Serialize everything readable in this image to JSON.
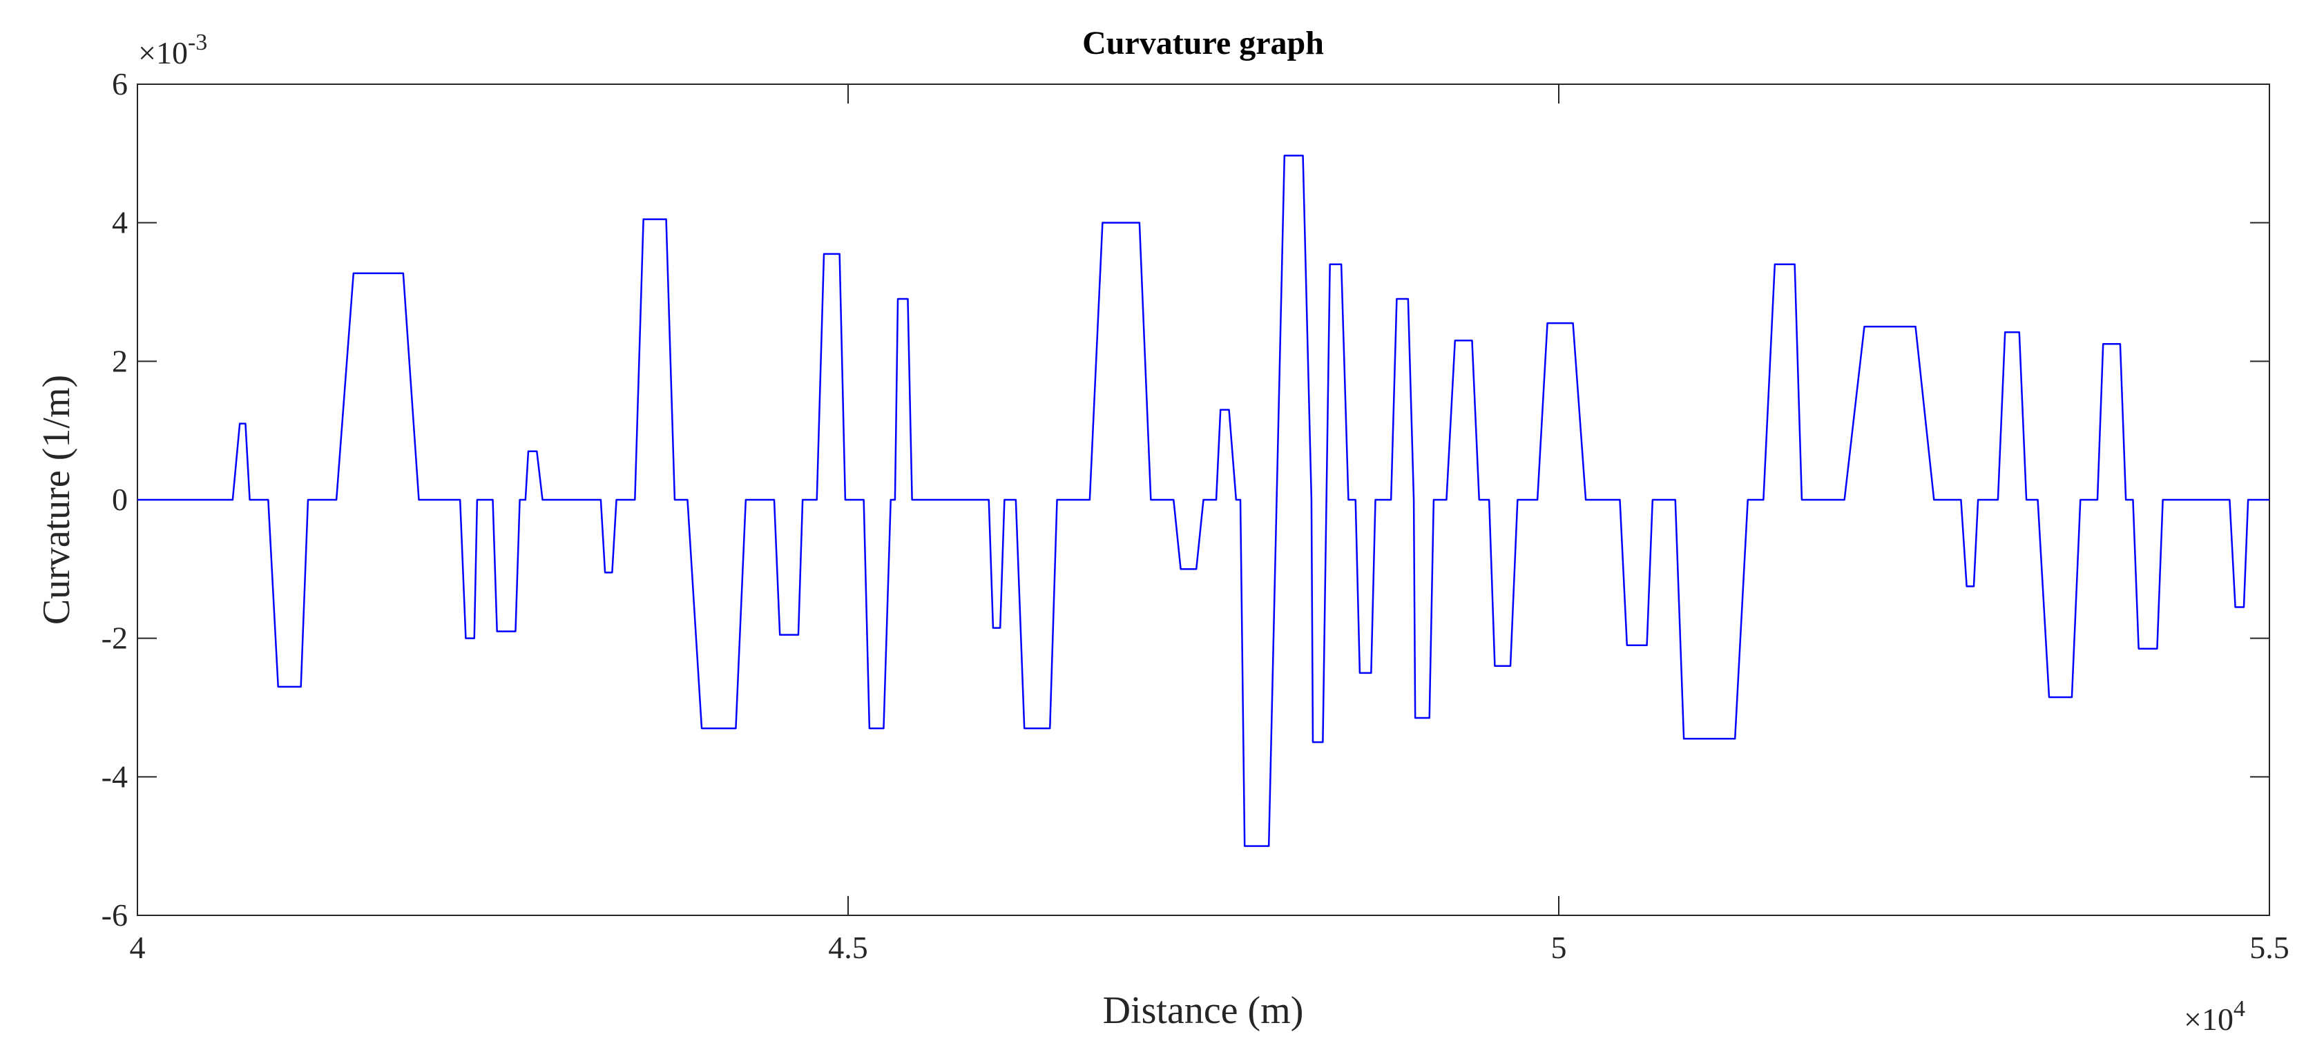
{
  "chart_data": {
    "type": "line",
    "title": "Curvature graph",
    "x_label": "Distance (m)",
    "y_label": "Curvature (1/m)",
    "x_scale_label": "×10",
    "x_scale_exponent": "4",
    "y_scale_label": "×10",
    "y_scale_exponent": "-3",
    "color": "#0000ff",
    "x": [
      4.0,
      4.067,
      4.072,
      4.076,
      4.079,
      4.092,
      4.099,
      4.115,
      4.12,
      4.14,
      4.152,
      4.187,
      4.198,
      4.227,
      4.231,
      4.237,
      4.239,
      4.25,
      4.253,
      4.266,
      4.269,
      4.273,
      4.275,
      4.281,
      4.285,
      4.326,
      4.329,
      4.334,
      4.337,
      4.35,
      4.356,
      4.372,
      4.378,
      4.387,
      4.397,
      4.421,
      4.428,
      4.448,
      4.452,
      4.465,
      4.468,
      4.478,
      4.483,
      4.494,
      4.498,
      4.511,
      4.515,
      4.525,
      4.53,
      4.533,
      4.535,
      4.542,
      4.545,
      4.599,
      4.602,
      4.607,
      4.61,
      4.618,
      4.624,
      4.642,
      4.647,
      4.67,
      4.679,
      4.705,
      4.713,
      4.729,
      4.734,
      4.745,
      4.75,
      4.759,
      4.762,
      4.768,
      4.773,
      4.776,
      4.779,
      4.796,
      4.807,
      4.82,
      4.826,
      4.827,
      4.834,
      4.839,
      4.847,
      4.852,
      4.857,
      4.86,
      4.868,
      4.871,
      4.882,
      4.886,
      4.894,
      4.898,
      4.899,
      4.909,
      4.912,
      4.921,
      4.927,
      4.939,
      4.944,
      4.951,
      4.955,
      4.966,
      4.971,
      4.985,
      4.992,
      5.01,
      5.019,
      5.043,
      5.048,
      5.062,
      5.066,
      5.082,
      5.088,
      5.124,
      5.133,
      5.144,
      5.152,
      5.166,
      5.171,
      5.201,
      5.215,
      5.251,
      5.264,
      5.283,
      5.287,
      5.292,
      5.295,
      5.309,
      5.314,
      5.324,
      5.329,
      5.337,
      5.345,
      5.361,
      5.367,
      5.379,
      5.383,
      5.395,
      5.399,
      5.404,
      5.408,
      5.421,
      5.425,
      5.472,
      5.476,
      5.482,
      5.485,
      5.5
    ],
    "values": [
      0,
      0,
      1.1,
      1.1,
      0,
      0,
      -2.7,
      -2.7,
      0,
      0,
      3.27,
      3.27,
      0,
      0,
      -2.0,
      -2.0,
      0,
      0,
      -1.9,
      -1.9,
      0,
      0,
      0.7,
      0.7,
      0,
      0,
      -1.05,
      -1.05,
      0,
      0,
      4.05,
      4.05,
      0,
      0,
      -3.3,
      -3.3,
      0,
      0,
      -1.95,
      -1.95,
      0,
      0,
      3.55,
      3.55,
      0,
      0,
      -3.3,
      -3.3,
      0,
      0,
      2.9,
      2.9,
      0,
      0,
      -1.85,
      -1.85,
      0,
      0,
      -3.3,
      -3.3,
      0,
      0,
      4.0,
      4.0,
      0,
      0,
      -1.0,
      -1.0,
      0,
      0,
      1.3,
      1.3,
      0,
      0,
      -5.0,
      -5.0,
      4.97,
      4.97,
      0,
      -3.5,
      -3.5,
      3.4,
      3.4,
      0,
      0,
      -2.5,
      -2.5,
      0,
      0,
      2.9,
      2.9,
      0,
      -3.15,
      -3.15,
      0,
      0,
      2.3,
      2.3,
      0,
      0,
      -2.4,
      -2.4,
      0,
      0,
      2.55,
      2.55,
      0,
      0,
      -2.1,
      -2.1,
      0,
      0,
      -3.45,
      -3.45,
      0,
      0,
      3.4,
      3.4,
      0,
      0,
      2.5,
      2.5,
      0,
      0,
      -1.25,
      -1.25,
      0,
      0,
      2.42,
      2.42,
      0,
      0,
      -2.85,
      -2.85,
      0,
      0,
      2.25,
      2.25,
      0,
      0,
      -2.15,
      -2.15,
      0,
      0,
      -1.55,
      -1.55,
      0,
      0
    ],
    "xlim": [
      4,
      5.5
    ],
    "xticks": [
      4,
      4.5,
      5,
      5.5
    ],
    "ylim": [
      -6,
      6
    ],
    "yticks": [
      -6,
      -4,
      -2,
      0,
      2,
      4,
      6
    ],
    "grid": false
  }
}
